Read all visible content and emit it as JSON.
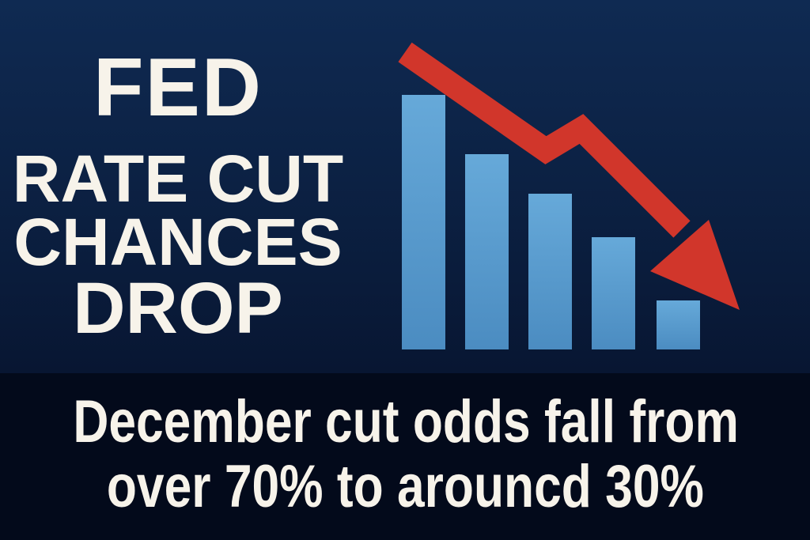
{
  "headline": {
    "line1": "FED",
    "line2": "RATE CUT",
    "line3": "CHANCES",
    "line4": "DROP"
  },
  "subtitle": {
    "line1": "December cut odds fall from",
    "line2": "over 70% to arouncd 30%"
  },
  "graphic": {
    "bar_levels_percent": [
      100,
      77,
      61,
      44,
      19
    ],
    "bar_color": "#5a9dd0",
    "arrow_color": "#d1362b",
    "arrow_direction": "down"
  },
  "colors": {
    "background": "#0b1f40",
    "band": "#030a1b",
    "text": "#f7f3ea"
  }
}
